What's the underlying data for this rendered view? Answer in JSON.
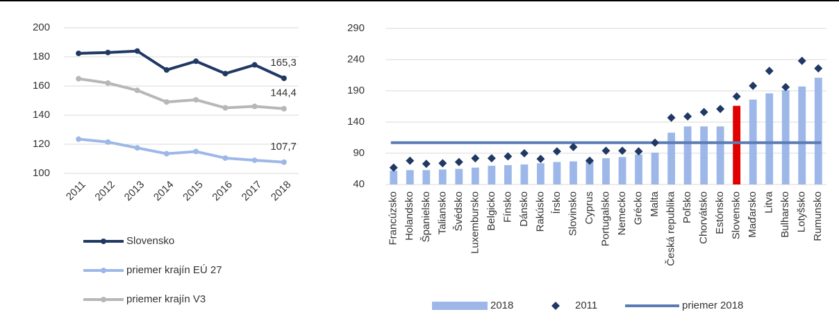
{
  "chart_data": [
    {
      "type": "line",
      "categories": [
        "2011",
        "2012",
        "2013",
        "2014",
        "2015",
        "2016",
        "2017",
        "2018"
      ],
      "series": [
        {
          "name": "Slovensko",
          "color": "#203864",
          "values": [
            182.4,
            183,
            184,
            171,
            177,
            168.5,
            174.5,
            165.3
          ],
          "value_labels": [
            null,
            null,
            null,
            null,
            null,
            null,
            null,
            "165,3"
          ]
        },
        {
          "name": "priemer krajín EÚ 27",
          "color": "#9db8e8",
          "values": [
            123.5,
            121.5,
            117.5,
            113.5,
            115,
            110.5,
            109,
            107.7
          ],
          "value_labels": [
            null,
            null,
            null,
            null,
            null,
            null,
            null,
            "107,7"
          ]
        },
        {
          "name": "priemer krajín V3",
          "color": "#b7b7b7",
          "values": [
            165,
            162,
            157,
            149,
            150.5,
            145,
            146,
            144.4
          ],
          "value_labels": [
            null,
            null,
            null,
            null,
            null,
            null,
            null,
            "144,4"
          ]
        }
      ],
      "ylim": [
        100,
        200
      ],
      "yticks": [
        100,
        120,
        140,
        160,
        180,
        200
      ],
      "grid": true
    },
    {
      "type": "bar",
      "categories": [
        "Francúzsko",
        "Holandsko",
        "Španielsko",
        "Taliansko",
        "Švédsko",
        "Luxembursko",
        "Belgicko",
        "Fínsko",
        "Dánsko",
        "Rakúsko",
        "Írsko",
        "Slovinsko",
        "Cyprus",
        "Portugalsko",
        "Nemecko",
        "Grécko",
        "Malta",
        "Česká republika",
        "Poľsko",
        "Chorvátsko",
        "Estónsko",
        "Slovensko",
        "Maďarsko",
        "Litva",
        "Bulharsko",
        "Lotyšsko",
        "Rumunsko"
      ],
      "series": [
        {
          "name": "2018",
          "type": "bar",
          "color": "#9db8e8",
          "colors": [
            "#9db8e8",
            "#9db8e8",
            "#9db8e8",
            "#9db8e8",
            "#9db8e8",
            "#9db8e8",
            "#9db8e8",
            "#9db8e8",
            "#9db8e8",
            "#9db8e8",
            "#9db8e8",
            "#9db8e8",
            "#9db8e8",
            "#9db8e8",
            "#9db8e8",
            "#9db8e8",
            "#9db8e8",
            "#9db8e8",
            "#9db8e8",
            "#9db8e8",
            "#9db8e8",
            "#e00000",
            "#9db8e8",
            "#9db8e8",
            "#9db8e8",
            "#9db8e8",
            "#9db8e8"
          ],
          "values": [
            62,
            63,
            63,
            64,
            65,
            67,
            70,
            71,
            72,
            74,
            76,
            77,
            80,
            82,
            84,
            88,
            91,
            123,
            133,
            133,
            133,
            166,
            176,
            186,
            191,
            197,
            211
          ]
        },
        {
          "name": "2011",
          "type": "scatter",
          "color": "#203864",
          "values": [
            67,
            78,
            73,
            74,
            76,
            82,
            82,
            85,
            90,
            81,
            93,
            100,
            78,
            94,
            94,
            93,
            107,
            147,
            149,
            156,
            161,
            181,
            198,
            222,
            196,
            238,
            226
          ]
        }
      ],
      "reference_line": {
        "name": "priemer 2018",
        "value": 107,
        "color": "#5b7bb5"
      },
      "ylim": [
        40,
        290
      ],
      "yticks": [
        40,
        90,
        140,
        190,
        240,
        290
      ],
      "grid": true
    }
  ]
}
